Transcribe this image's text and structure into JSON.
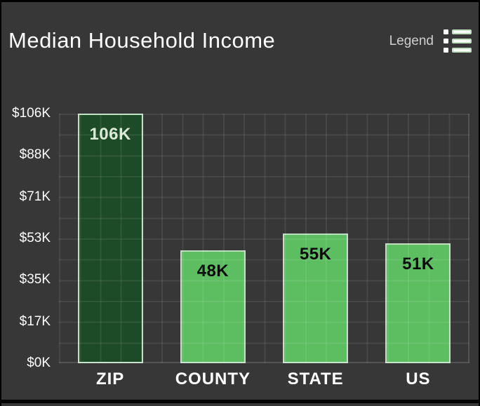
{
  "header": {
    "title": "Median Household Income",
    "legend_label": "Legend"
  },
  "colors": {
    "background": "#373737",
    "frame_border": "#000000",
    "grid_line": "#4a4a4a",
    "title_text": "#fdfdfd",
    "legend_text": "#cfcfcf",
    "axis_text": "#ffffff",
    "bar_fill_highlight": "#1d4b27",
    "bar_fill_normal": "#5cbe61",
    "bar_border": "#bfdfc0",
    "bar_label_on_dark": "#dbead8",
    "bar_label_on_light": "#060606"
  },
  "chart_data": {
    "type": "bar",
    "title": "Median Household Income",
    "categories": [
      "ZIP",
      "COUNTY",
      "STATE",
      "US"
    ],
    "values": [
      106,
      48,
      55,
      51
    ],
    "value_labels": [
      "106K",
      "48K",
      "55K",
      "51K"
    ],
    "highlighted_category": "ZIP",
    "xlabel": "",
    "ylabel": "",
    "ylim": [
      0,
      106
    ],
    "yticks": [
      {
        "value": 0,
        "label": "$0K"
      },
      {
        "value": 17,
        "label": "$17K"
      },
      {
        "value": 35,
        "label": "$35K"
      },
      {
        "value": 53,
        "label": "$53K"
      },
      {
        "value": 71,
        "label": "$71K"
      },
      {
        "value": 88,
        "label": "$88K"
      },
      {
        "value": 106,
        "label": "$106K"
      }
    ],
    "grid": true,
    "legend_position": "top-right"
  }
}
